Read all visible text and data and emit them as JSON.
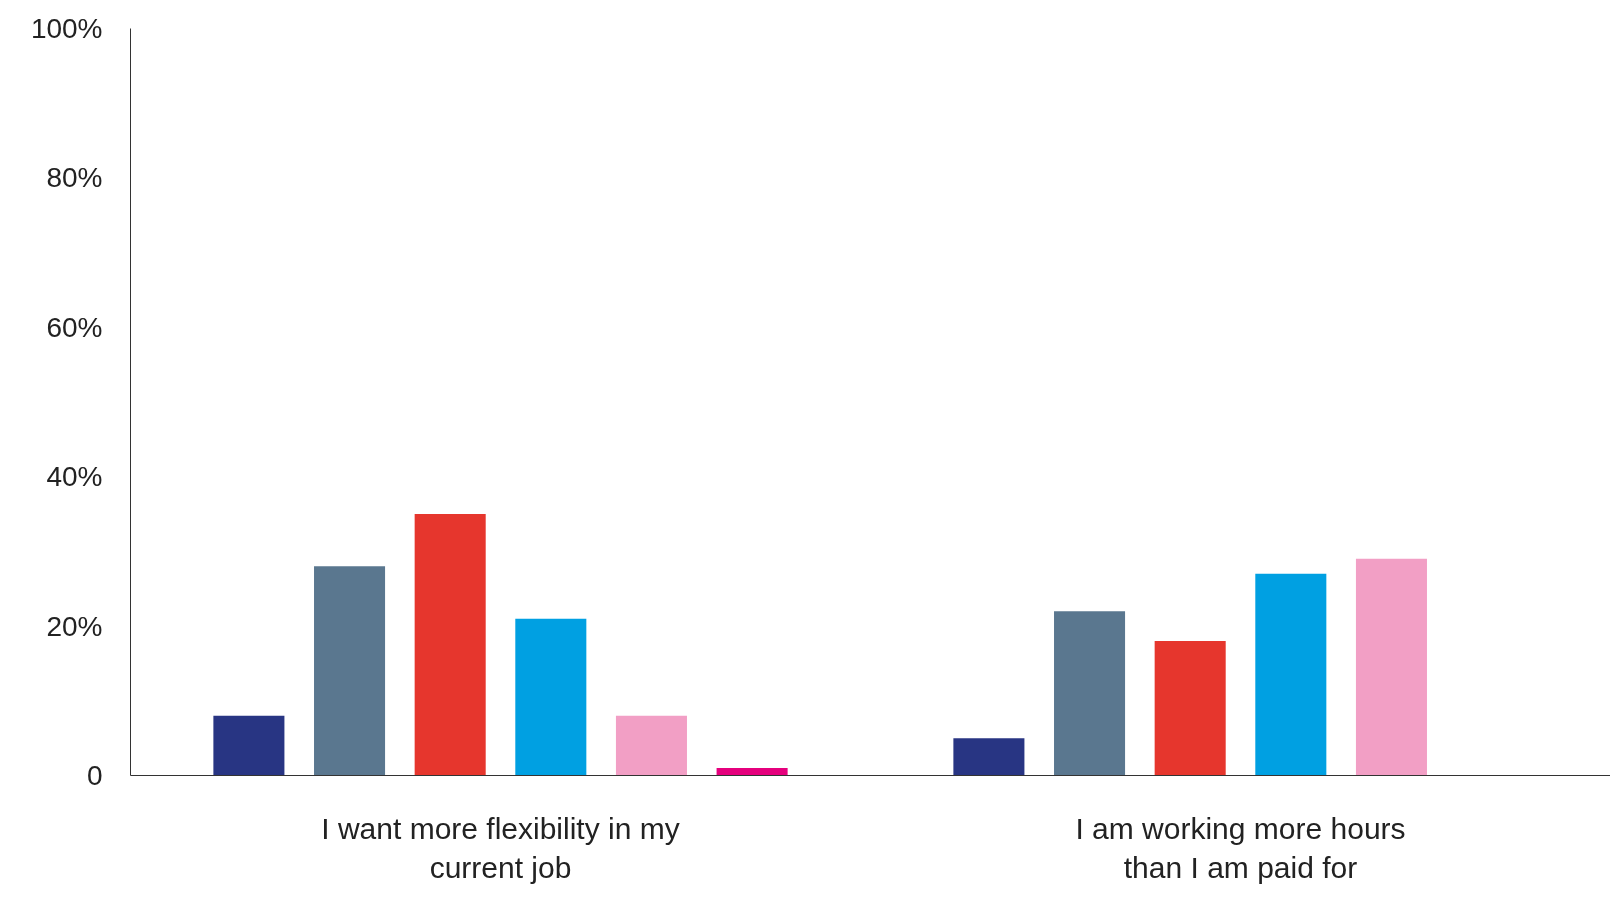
{
  "chart_data": {
    "type": "bar",
    "categories": [
      "I want more flexibility in my\ncurrent job",
      "I am working more hours\nthan I am paid for"
    ],
    "series": [
      {
        "color": "#283583",
        "values": [
          8,
          5
        ]
      },
      {
        "color": "#5a778f",
        "values": [
          28,
          22
        ]
      },
      {
        "color": "#e6362d",
        "values": [
          35,
          18
        ]
      },
      {
        "color": "#00a0e2",
        "values": [
          21,
          27
        ]
      },
      {
        "color": "#f29fc5",
        "values": [
          8,
          29
        ]
      },
      {
        "color": "#e5007d",
        "values": [
          1,
          0
        ]
      }
    ],
    "ylim": [
      0,
      100
    ],
    "yticks": [
      {
        "value": 0,
        "label": "0"
      },
      {
        "value": 20,
        "label": "20%"
      },
      {
        "value": 40,
        "label": "40%"
      },
      {
        "value": 60,
        "label": "60%"
      },
      {
        "value": 80,
        "label": "80%"
      },
      {
        "value": 100,
        "label": "100%"
      }
    ],
    "grid": false
  }
}
